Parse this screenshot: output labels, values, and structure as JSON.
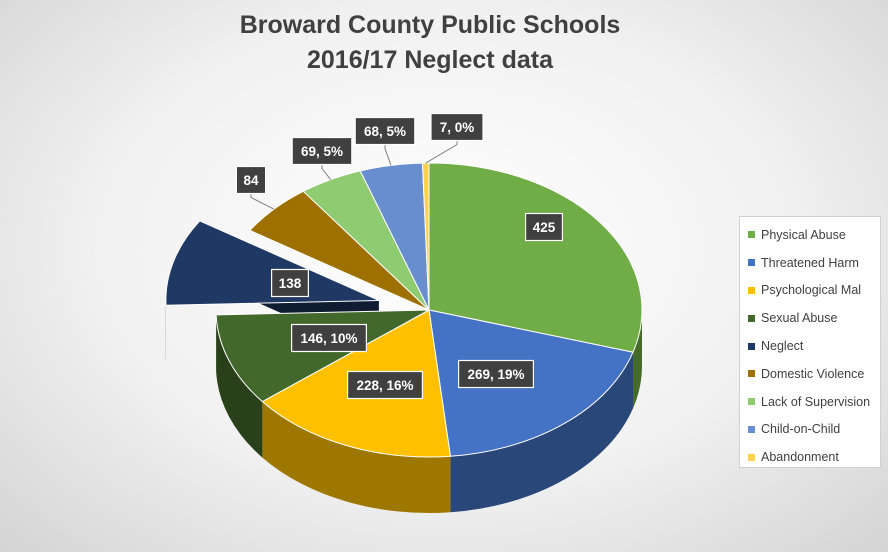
{
  "colors": {
    "Physical Abuse": "#70ad47",
    "Threatened Harm": "#4472c4",
    "Psychological Mal": "#ffc000",
    "Sexual Abuse": "#43682b",
    "Neglect": "#203864",
    "Domestic Violence": "#9e7000",
    "Lack of Supervision": "#8fcb71",
    "Child-on-Child": "#698ed0",
    "Abandonment": "#ffd24d"
  },
  "chart_data": {
    "type": "pie",
    "title": [
      "Broward County Public Schools",
      "2016/17 Neglect data"
    ],
    "legend_position": "right",
    "slices": [
      {
        "label": "Physical Abuse",
        "value": 425,
        "data_label": "425",
        "exploded": false
      },
      {
        "label": "Threatened Harm",
        "value": 269,
        "data_label": "269, 19%",
        "exploded": false
      },
      {
        "label": "Psychological Mal",
        "value": 228,
        "data_label": "228, 16%",
        "exploded": false
      },
      {
        "label": "Sexual Abuse",
        "value": 146,
        "data_label": "146, 10%",
        "exploded": false
      },
      {
        "label": "Neglect",
        "value": 138,
        "data_label": "138",
        "exploded": true
      },
      {
        "label": "Domestic Violence",
        "value": 84,
        "data_label": "84",
        "exploded": false
      },
      {
        "label": "Lack of Supervision",
        "value": 69,
        "data_label": "69, 5%",
        "exploded": false
      },
      {
        "label": "Child-on-Child",
        "value": 68,
        "data_label": "68, 5%",
        "exploded": false
      },
      {
        "label": "Abandonment",
        "value": 7,
        "data_label": "7, 0%",
        "exploded": false
      }
    ]
  }
}
